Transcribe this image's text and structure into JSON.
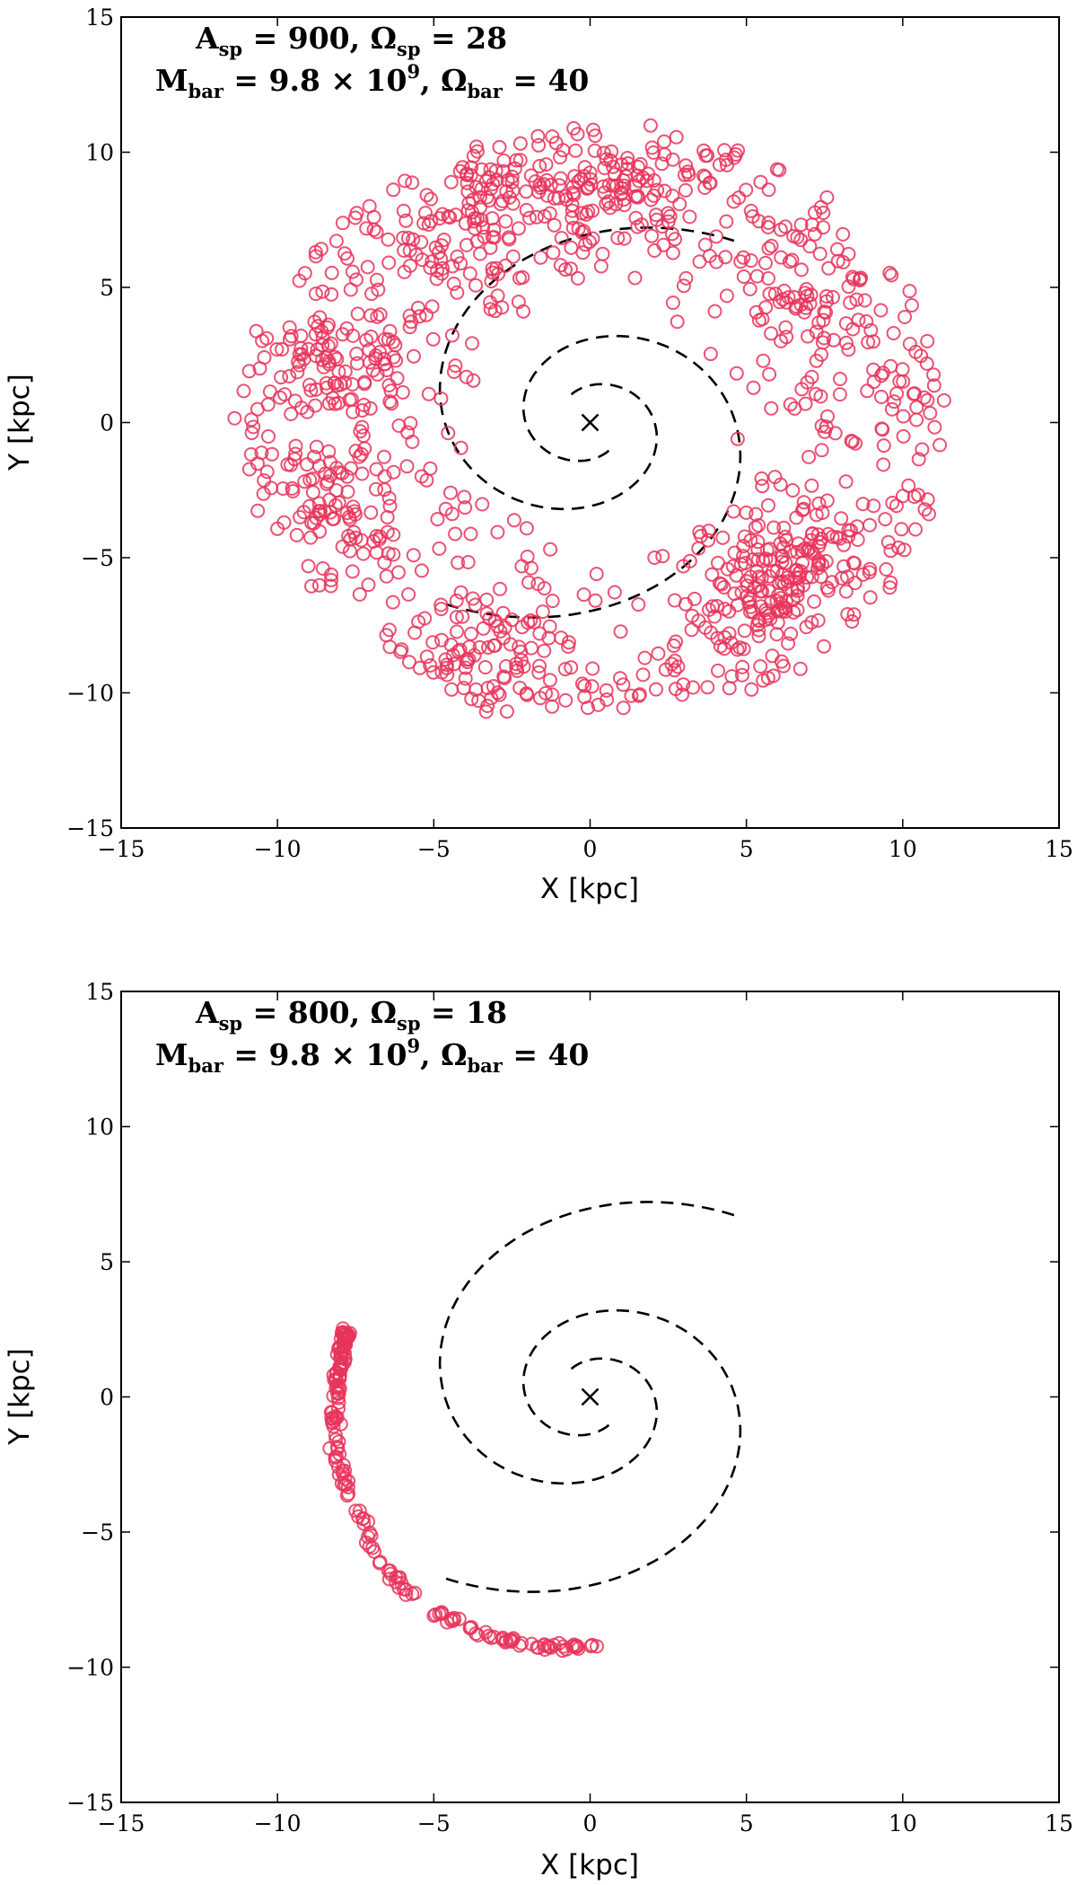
{
  "chart_data": [
    {
      "type": "scatter",
      "panel": "top",
      "xlabel": "X [kpc]",
      "ylabel": "Y [kpc]",
      "xlim": [
        -15,
        15
      ],
      "ylim": [
        -15,
        15
      ],
      "xticks": [
        "−15",
        "−10",
        "−5",
        "0",
        "5",
        "10",
        "15"
      ],
      "yticks": [
        "−15",
        "−10",
        "−5",
        "0",
        "5",
        "10",
        "15"
      ],
      "annotation": {
        "line1": {
          "a": "A",
          "a_sub": "sp",
          "a_val": " = 900, ",
          "o": "Ω",
          "o_sub": "sp",
          "o_val": " = 28"
        },
        "line2": {
          "m": "M",
          "m_sub": "bar",
          "m_val": " = 9.8 × 10",
          "m_exp": "9",
          "sep": ", ",
          "o": "Ω",
          "o_sub": "bar",
          "o_val": " = 40"
        }
      },
      "marker_color": "#e8345a",
      "center_marker": {
        "x": 0,
        "y": 0,
        "symbol": "×"
      },
      "spiral_arms": [
        {
          "r0": 1.2,
          "theta_start_deg": 120,
          "theta_end_deg": -305,
          "pitch_deg": 14.5
        },
        {
          "r0": 1.2,
          "theta_start_deg": -60,
          "theta_end_deg": -485,
          "pitch_deg": 14.5
        }
      ],
      "points_description": "ring of ~1200 particles between R≈4 and R≈11 kpc",
      "points": {
        "r_min": 4.0,
        "r_max": 11.2,
        "count": 1200,
        "clump_centers": [
          [
            -9.5,
            1.5
          ],
          [
            -8,
            -3
          ],
          [
            -4,
            7
          ],
          [
            -3.5,
            -9
          ],
          [
            7,
            5
          ],
          [
            7,
            -5
          ],
          [
            6,
            -6
          ],
          [
            -7,
            2
          ],
          [
            2,
            8.5
          ],
          [
            -1,
            8.5
          ],
          [
            5,
            -7
          ]
        ]
      }
    },
    {
      "type": "scatter",
      "panel": "bottom",
      "xlabel": "X [kpc]",
      "ylabel": "Y [kpc]",
      "xlim": [
        -15,
        15
      ],
      "ylim": [
        -15,
        15
      ],
      "xticks": [
        "−15",
        "−10",
        "−5",
        "0",
        "5",
        "10",
        "15"
      ],
      "yticks": [
        "−15",
        "−10",
        "−5",
        "0",
        "5",
        "10",
        "15"
      ],
      "annotation": {
        "line1": {
          "a": "A",
          "a_sub": "sp",
          "a_val": " = 800, ",
          "o": "Ω",
          "o_sub": "sp",
          "o_val": " = 18"
        },
        "line2": {
          "m": "M",
          "m_sub": "bar",
          "m_val": " = 9.8 × 10",
          "m_exp": "9",
          "sep": ", ",
          "o": "Ω",
          "o_sub": "bar",
          "o_val": " = 40"
        }
      },
      "marker_color": "#e8345a",
      "center_marker": {
        "x": 0,
        "y": 0,
        "symbol": "×"
      },
      "spiral_arms": [
        {
          "r0": 1.2,
          "theta_start_deg": 120,
          "theta_end_deg": -305,
          "pitch_deg": 14.5
        },
        {
          "r0": 1.2,
          "theta_start_deg": -60,
          "theta_end_deg": -485,
          "pitch_deg": 14.5
        }
      ],
      "points_description": "thin arc of particles from (-7.8, 2.4) curving down to (0.2, -9.2)",
      "points": {
        "arc": [
          [
            -7.8,
            2.4
          ],
          [
            -8.1,
            0.5
          ],
          [
            -8.2,
            -1.0
          ],
          [
            -8.0,
            -2.5
          ],
          [
            -7.6,
            -4.0
          ],
          [
            -7.0,
            -5.5
          ],
          [
            -6.2,
            -6.8
          ],
          [
            -5.2,
            -7.8
          ],
          [
            -4.0,
            -8.5
          ],
          [
            -2.8,
            -9.0
          ],
          [
            -1.6,
            -9.25
          ],
          [
            -0.6,
            -9.3
          ],
          [
            0.2,
            -9.2
          ]
        ],
        "count": 190
      }
    }
  ]
}
